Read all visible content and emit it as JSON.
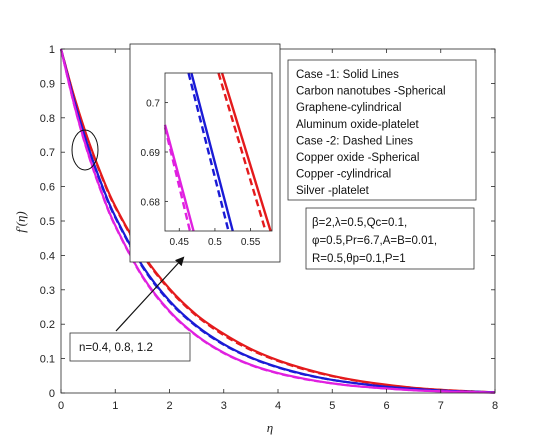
{
  "chart_data": {
    "type": "line",
    "xlabel": "η",
    "ylabel": "f'(η)",
    "xlim": [
      0,
      8
    ],
    "ylim": [
      0,
      1
    ],
    "xticks": [
      "0",
      "1",
      "2",
      "3",
      "4",
      "5",
      "6",
      "7",
      "8"
    ],
    "yticks": [
      "0",
      "0.1",
      "0.2",
      "0.3",
      "0.4",
      "0.5",
      "0.6",
      "0.7",
      "0.8",
      "0.9",
      "1"
    ],
    "grid": false,
    "series": [
      {
        "style": "solid",
        "color": "#e41a1c",
        "n": 1.2,
        "x": [
          0,
          0.25,
          0.5,
          0.75,
          1,
          1.5,
          2,
          2.5,
          3,
          3.5,
          4,
          4.5,
          5,
          5.5,
          6,
          6.5,
          7,
          7.5,
          8
        ],
        "values": [
          1,
          0.858,
          0.736,
          0.632,
          0.543,
          0.405,
          0.303,
          0.227,
          0.172,
          0.128,
          0.095,
          0.07,
          0.05,
          0.035,
          0.024,
          0.015,
          0.009,
          0.005,
          0.002
        ]
      },
      {
        "style": "dashed",
        "color": "#e41a1c",
        "n": 1.2,
        "x": [
          0,
          0.25,
          0.5,
          0.75,
          1,
          1.5,
          2,
          2.5,
          3,
          3.5,
          4,
          4.5,
          5,
          5.5,
          6,
          6.5,
          7,
          7.5,
          8
        ],
        "values": [
          1,
          0.856,
          0.734,
          0.629,
          0.54,
          0.402,
          0.3,
          0.224,
          0.168,
          0.125,
          0.093,
          0.068,
          0.049,
          0.034,
          0.023,
          0.015,
          0.009,
          0.005,
          0.002
        ]
      },
      {
        "style": "solid",
        "color": "#1a1ad6",
        "n": 0.8,
        "x": [
          0,
          0.25,
          0.5,
          0.75,
          1,
          1.5,
          2,
          2.5,
          3,
          3.5,
          4,
          4.5,
          5,
          5.5,
          6,
          6.5,
          7,
          7.5,
          8
        ],
        "values": [
          1,
          0.846,
          0.716,
          0.606,
          0.513,
          0.37,
          0.268,
          0.195,
          0.142,
          0.103,
          0.075,
          0.054,
          0.038,
          0.027,
          0.018,
          0.012,
          0.007,
          0.004,
          0.002
        ]
      },
      {
        "style": "dashed",
        "color": "#1a1ad6",
        "n": 0.8,
        "x": [
          0,
          0.25,
          0.5,
          0.75,
          1,
          1.5,
          2,
          2.5,
          3,
          3.5,
          4,
          4.5,
          5,
          5.5,
          6,
          6.5,
          7,
          7.5,
          8
        ],
        "values": [
          1,
          0.845,
          0.714,
          0.603,
          0.51,
          0.367,
          0.265,
          0.193,
          0.14,
          0.102,
          0.074,
          0.053,
          0.038,
          0.027,
          0.018,
          0.012,
          0.007,
          0.004,
          0.002
        ]
      },
      {
        "style": "solid",
        "color": "#e020e0",
        "n": 0.4,
        "x": [
          0,
          0.25,
          0.5,
          0.75,
          1,
          1.5,
          2,
          2.5,
          3,
          3.5,
          4,
          4.5,
          5,
          5.5,
          6,
          6.5,
          7,
          7.5,
          8
        ],
        "values": [
          1,
          0.834,
          0.697,
          0.583,
          0.487,
          0.34,
          0.238,
          0.167,
          0.117,
          0.082,
          0.058,
          0.041,
          0.028,
          0.019,
          0.013,
          0.008,
          0.005,
          0.003,
          0.001
        ]
      },
      {
        "style": "dashed",
        "color": "#e020e0",
        "n": 0.4,
        "x": [
          0,
          0.25,
          0.5,
          0.75,
          1,
          1.5,
          2,
          2.5,
          3,
          3.5,
          4,
          4.5,
          5,
          5.5,
          6,
          6.5,
          7,
          7.5,
          8
        ],
        "values": [
          1,
          0.833,
          0.695,
          0.581,
          0.485,
          0.338,
          0.236,
          0.166,
          0.116,
          0.081,
          0.057,
          0.04,
          0.028,
          0.019,
          0.013,
          0.008,
          0.005,
          0.003,
          0.001
        ]
      }
    ],
    "inset": {
      "xlim": [
        0.43,
        0.58
      ],
      "ylim": [
        0.674,
        0.706
      ],
      "xticks": [
        "0.45",
        "0.5",
        "0.55"
      ],
      "yticks": [
        "0.68",
        "0.69",
        "0.7"
      ],
      "series": [
        {
          "style": "solid",
          "color": "#e020e0",
          "x": [
            0.43,
            0.47
          ],
          "values": [
            0.6955,
            0.674
          ]
        },
        {
          "style": "dashed",
          "color": "#e020e0",
          "x": [
            0.43,
            0.465
          ],
          "values": [
            0.695,
            0.674
          ]
        },
        {
          "style": "solid",
          "color": "#1a1ad6",
          "x": [
            0.467,
            0.525
          ],
          "values": [
            0.706,
            0.674
          ]
        },
        {
          "style": "dashed",
          "color": "#1a1ad6",
          "x": [
            0.463,
            0.519
          ],
          "values": [
            0.706,
            0.674
          ]
        },
        {
          "style": "solid",
          "color": "#e41a1c",
          "x": [
            0.51,
            0.578
          ],
          "values": [
            0.706,
            0.674
          ]
        },
        {
          "style": "dashed",
          "color": "#e41a1c",
          "x": [
            0.505,
            0.571
          ],
          "values": [
            0.706,
            0.674
          ]
        }
      ]
    },
    "legend_lines": [
      "Case -1: Solid Lines",
      "Carbon nanotubes -Spherical",
      "Graphene-cylindrical",
      "Aluminum oxide-platelet",
      "Case -2: Dashed Lines",
      "Copper oxide -Spherical",
      "Copper -cylindrical",
      "Silver -platelet"
    ],
    "parameter_lines": [
      "β=2,λ=0.5,Qc=0.1,",
      "φ=0.5,Pr=6.7,A=B=0.01,",
      "R=0.5,θp=0.1,P=1"
    ],
    "annotation": "n=0.4, 0.8, 1.2"
  }
}
